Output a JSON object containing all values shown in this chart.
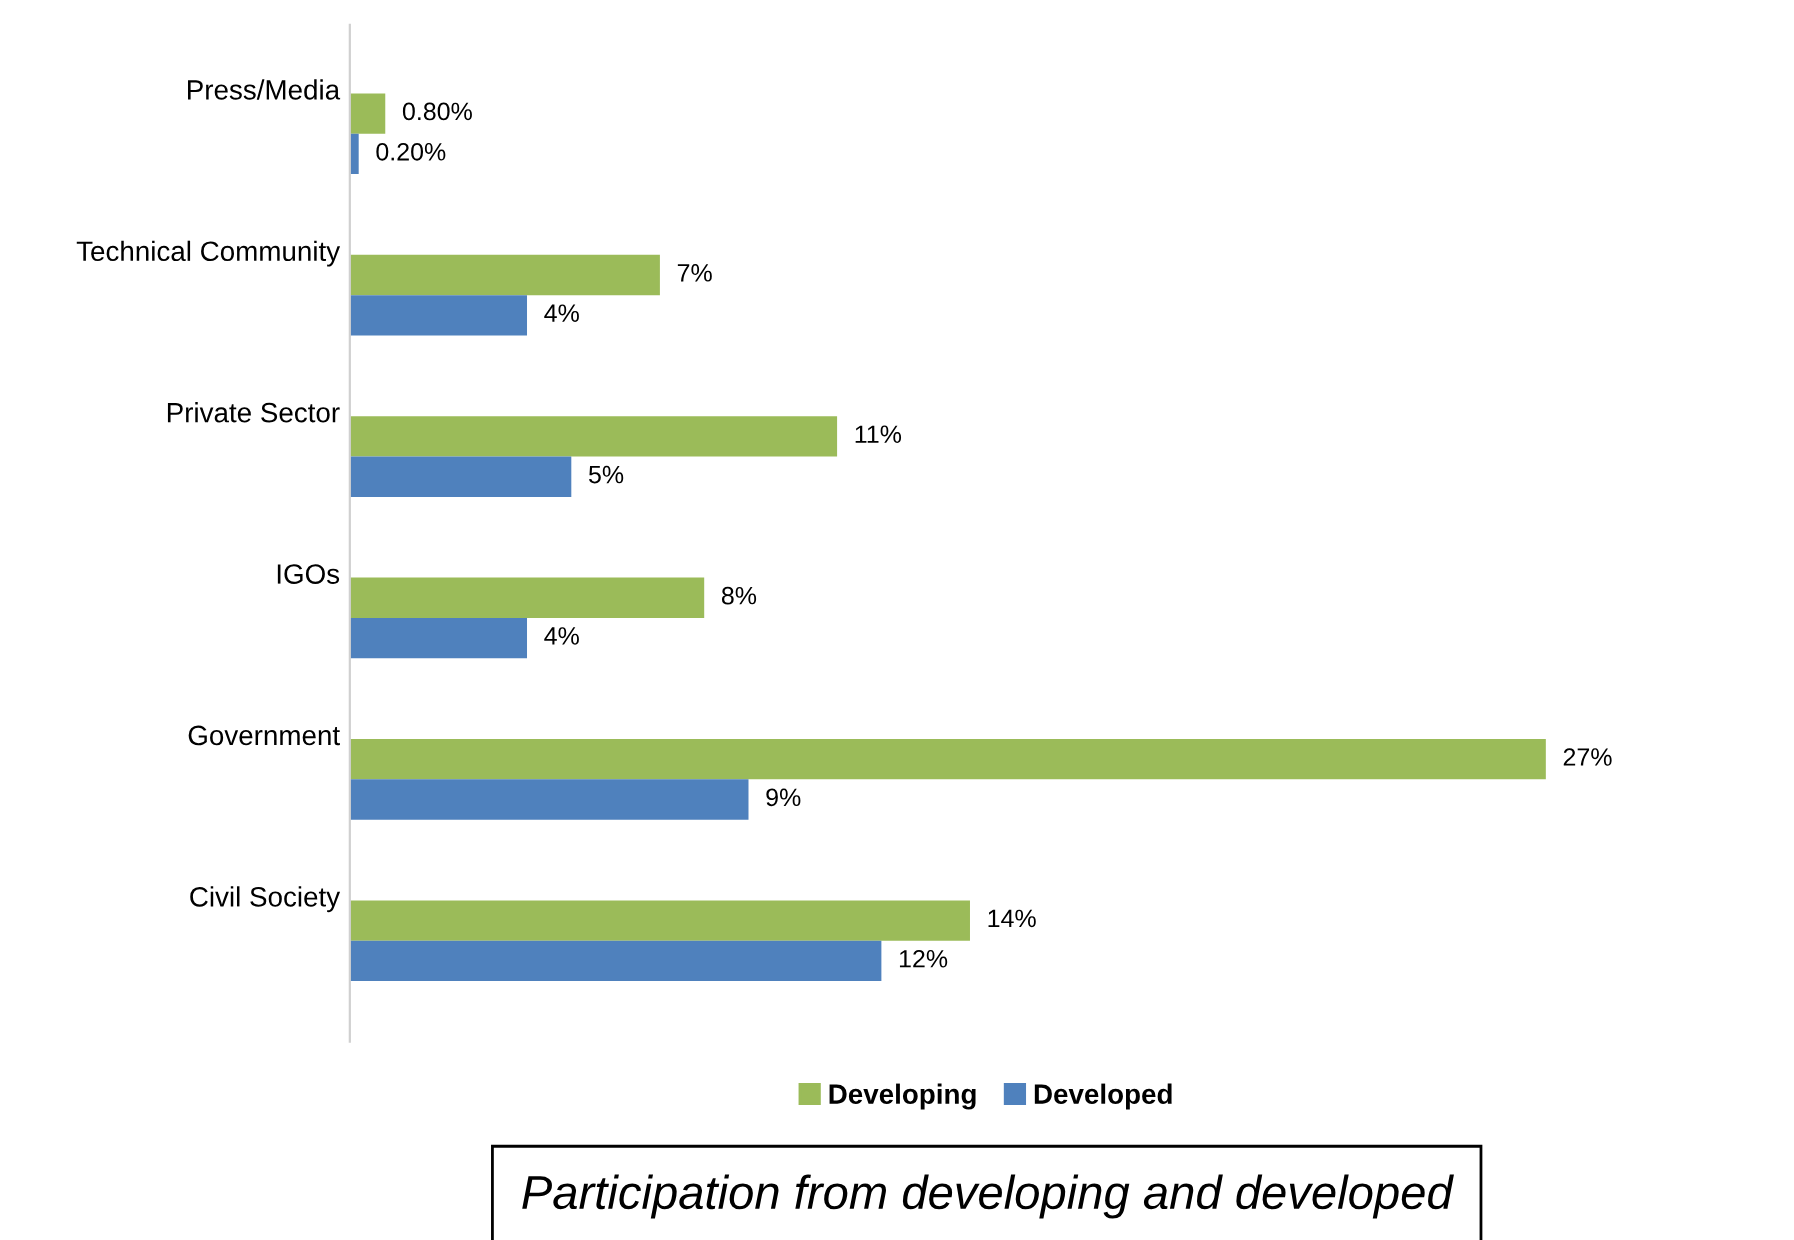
{
  "chart_data": {
    "type": "bar",
    "orientation": "horizontal",
    "title": "Participation from developing and developed",
    "categories": [
      "Press/Media",
      "Technical Community",
      "Private Sector",
      "IGOs",
      "Government",
      "Civil Society"
    ],
    "series": [
      {
        "name": "Developing",
        "color": "#9bbb59",
        "values": [
          0.8,
          7,
          11,
          8,
          27,
          14
        ],
        "value_labels": [
          "0.80%",
          "7%",
          "11%",
          "8%",
          "27%",
          "14%"
        ]
      },
      {
        "name": "Developed",
        "color": "#4f81bd",
        "values": [
          0.2,
          4,
          5,
          4,
          9,
          12
        ],
        "value_labels": [
          "0.20%",
          "4%",
          "5%",
          "4%",
          "9%",
          "12%"
        ]
      }
    ],
    "legend": "bottom",
    "grid": false,
    "tick_labels": "y"
  }
}
